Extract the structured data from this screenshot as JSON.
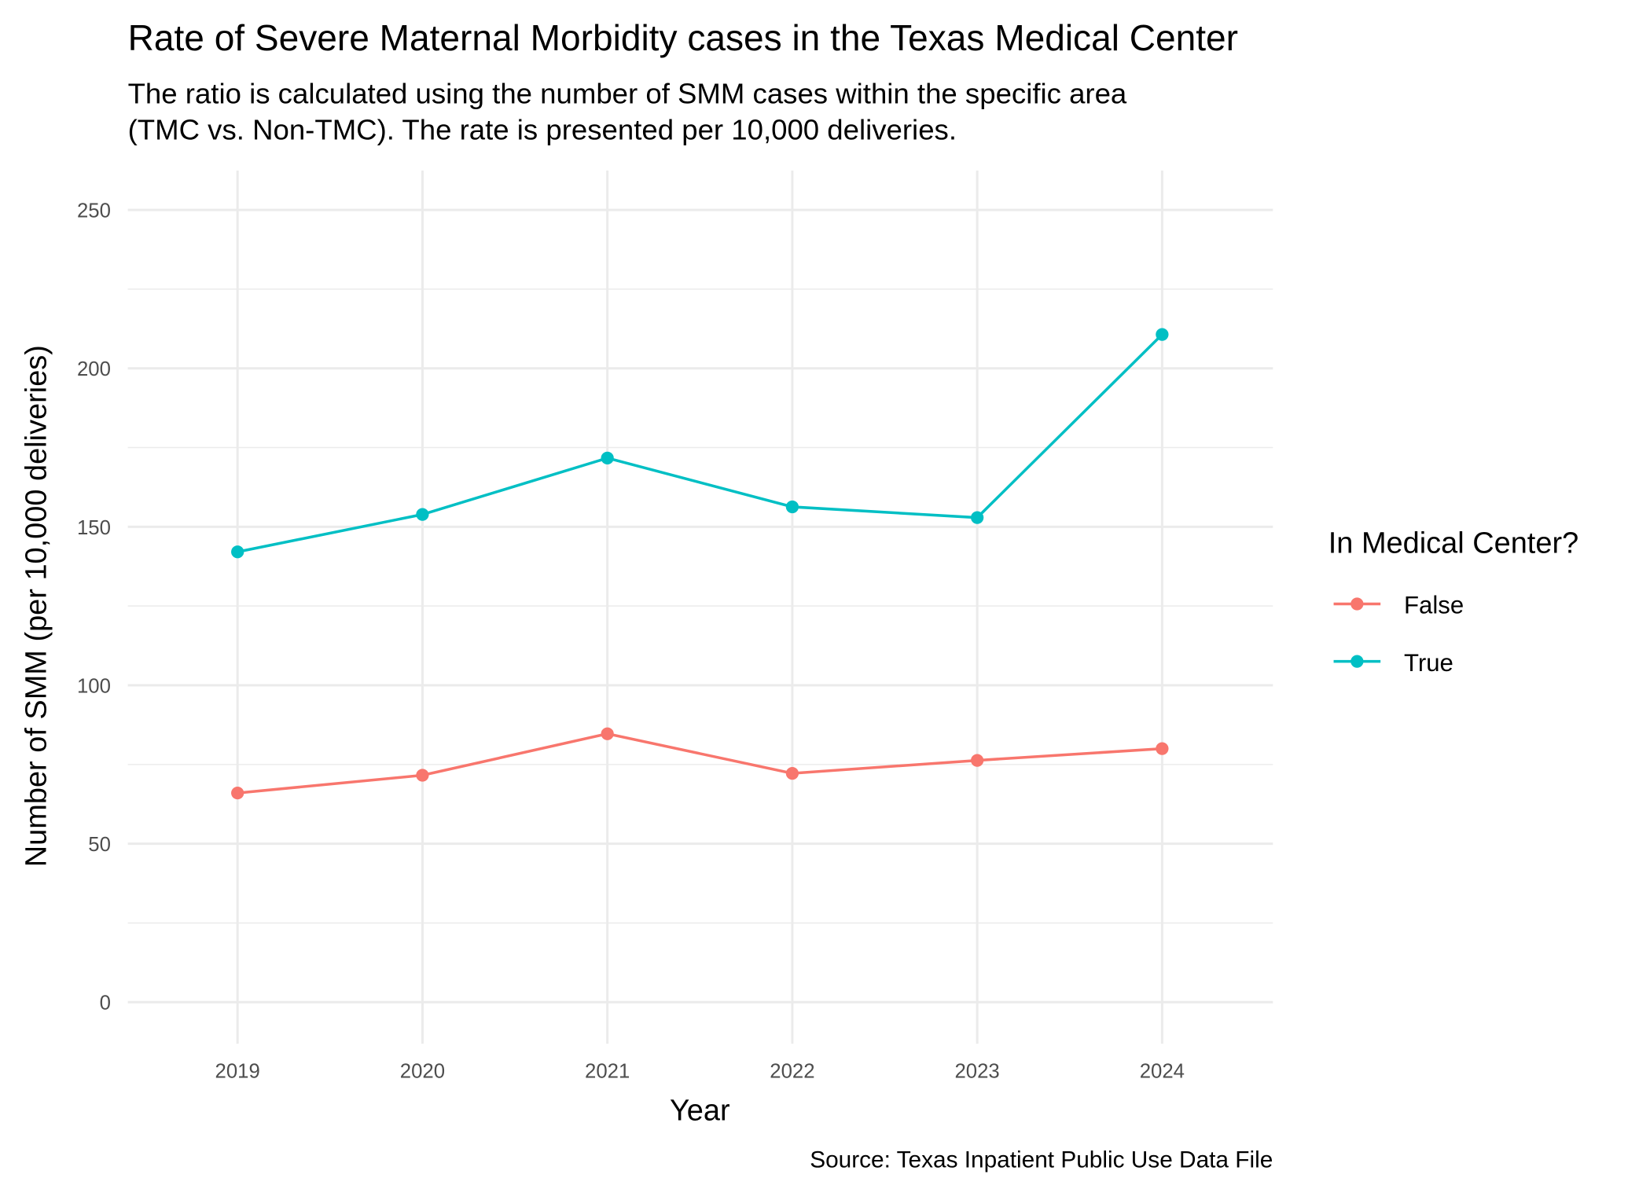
{
  "chart_data": {
    "type": "line",
    "title": "Rate of Severe Maternal Morbidity cases in the Texas Medical Center",
    "subtitle": [
      "The ratio is calculated using the number of SMM cases within the specific area",
      "(TMC vs. Non-TMC). The rate is presented per 10,000 deliveries."
    ],
    "xlabel": "Year",
    "ylabel": "Number of SMM (per 10,000 deliveries)",
    "caption": "Source: Texas Inpatient Public Use Data File",
    "x": [
      2019,
      2020,
      2021,
      2022,
      2023,
      2024
    ],
    "x_tick_labels": [
      "2019",
      "2020",
      "2021",
      "2022",
      "2023",
      "2024"
    ],
    "y_ticks": [
      0,
      50,
      100,
      150,
      200,
      250
    ],
    "y_tick_labels": [
      "0",
      "50",
      "100",
      "150",
      "200",
      "250"
    ],
    "ylim": [
      0,
      250
    ],
    "grid": true,
    "legend": {
      "title": "In Medical Center?",
      "placement": "right"
    },
    "series": [
      {
        "name": "False",
        "color": "#F8766D",
        "values": [
          66.0,
          71.6,
          84.7,
          72.2,
          76.3,
          80.0
        ]
      },
      {
        "name": "True",
        "color": "#00BFC4",
        "values": [
          142.1,
          153.9,
          171.7,
          156.3,
          152.9,
          210.7
        ]
      }
    ]
  }
}
